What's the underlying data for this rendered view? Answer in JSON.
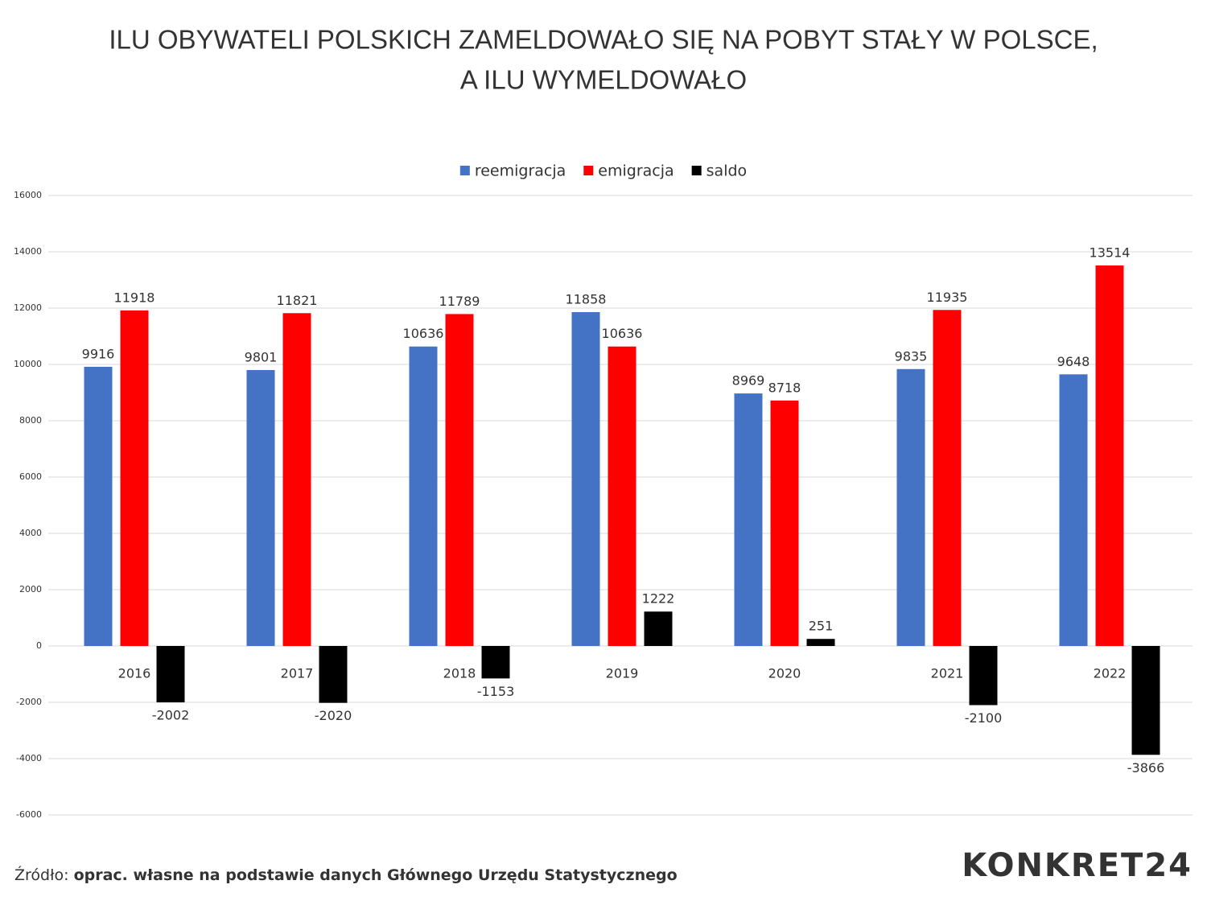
{
  "chart_data": {
    "type": "bar",
    "title": [
      "ILU OBYWATELI POLSKICH ZAMELDOWAŁO SIĘ NA POBYT STAŁY W POLSCE,",
      "A ILU WYMELDOWAŁO"
    ],
    "categories": [
      "2016",
      "2017",
      "2018",
      "2019",
      "2020",
      "2021",
      "2022"
    ],
    "series": [
      {
        "name": "reemigracja",
        "color": "#4472c4",
        "values": [
          9916,
          9801,
          10636,
          11858,
          8969,
          9835,
          9648
        ]
      },
      {
        "name": "emigracja",
        "color": "#ff0000",
        "values": [
          11918,
          11821,
          11789,
          10636,
          8718,
          11935,
          13514
        ]
      },
      {
        "name": "saldo",
        "color": "#000000",
        "values": [
          -2002,
          -2020,
          -1153,
          1222,
          251,
          -2100,
          -3866
        ]
      }
    ],
    "ylim": [
      -6000,
      16000
    ],
    "yticks": [
      -6000,
      -4000,
      -2000,
      0,
      2000,
      4000,
      6000,
      8000,
      10000,
      12000,
      14000,
      16000
    ],
    "grid": true,
    "legend": "top",
    "source_label": "Źródło:",
    "source": "oprac. własne na podstawie danych Głównego Urzędu Statystycznego",
    "logo": "KONKRET24"
  }
}
